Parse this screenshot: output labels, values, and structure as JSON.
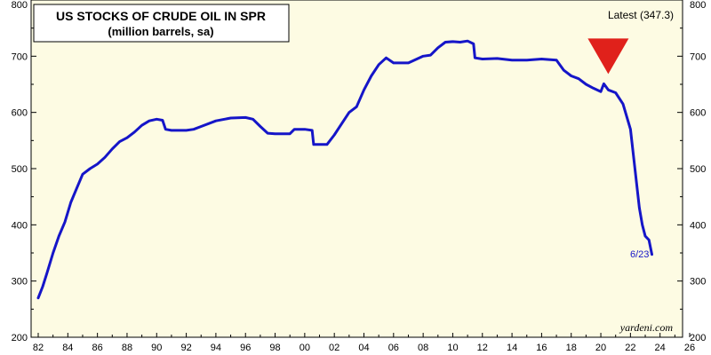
{
  "chart_data": {
    "type": "line",
    "title": "US STOCKS OF CRUDE OIL IN SPR",
    "subtitle": "(million barrels, sa)",
    "latest_label": "Latest (347.3)",
    "end_label": "6/23",
    "source": "yardeni.com",
    "ylim": [
      200,
      800
    ],
    "yticks": [
      200,
      300,
      400,
      500,
      600,
      700,
      800
    ],
    "xlim": [
      1982,
      2026
    ],
    "xtick_labels": [
      "82",
      "84",
      "86",
      "88",
      "90",
      "92",
      "94",
      "96",
      "98",
      "00",
      "02",
      "04",
      "06",
      "08",
      "10",
      "12",
      "14",
      "16",
      "18",
      "20",
      "22",
      "24",
      "26"
    ],
    "grid": false,
    "colors": {
      "plot_background": "#fdfbe3",
      "line": "#1515c8",
      "marker": "#e0211b"
    },
    "marker": {
      "shape": "down-triangle",
      "x": 2020.5,
      "y": 700
    },
    "series": [
      {
        "points": [
          [
            1982.0,
            270
          ],
          [
            1982.3,
            290
          ],
          [
            1982.6,
            315
          ],
          [
            1983.0,
            350
          ],
          [
            1983.4,
            380
          ],
          [
            1983.8,
            405
          ],
          [
            1984.2,
            440
          ],
          [
            1984.6,
            465
          ],
          [
            1985.0,
            490
          ],
          [
            1985.5,
            500
          ],
          [
            1986.0,
            508
          ],
          [
            1986.5,
            520
          ],
          [
            1987.0,
            535
          ],
          [
            1987.5,
            548
          ],
          [
            1988.0,
            555
          ],
          [
            1988.5,
            565
          ],
          [
            1989.0,
            577
          ],
          [
            1989.5,
            585
          ],
          [
            1990.0,
            588
          ],
          [
            1990.4,
            586
          ],
          [
            1990.6,
            570
          ],
          [
            1991.0,
            568
          ],
          [
            1992.0,
            568
          ],
          [
            1992.5,
            570
          ],
          [
            1993.0,
            575
          ],
          [
            1994.0,
            585
          ],
          [
            1995.0,
            590
          ],
          [
            1996.0,
            591
          ],
          [
            1996.5,
            588
          ],
          [
            1997.0,
            575
          ],
          [
            1997.5,
            563
          ],
          [
            1998.0,
            562
          ],
          [
            1999.0,
            562
          ],
          [
            1999.3,
            570
          ],
          [
            2000.0,
            570
          ],
          [
            2000.5,
            568
          ],
          [
            2000.6,
            543
          ],
          [
            2001.5,
            543
          ],
          [
            2002.0,
            560
          ],
          [
            2002.5,
            580
          ],
          [
            2003.0,
            600
          ],
          [
            2003.5,
            610
          ],
          [
            2004.0,
            640
          ],
          [
            2004.5,
            665
          ],
          [
            2005.0,
            685
          ],
          [
            2005.5,
            697
          ],
          [
            2006.0,
            688
          ],
          [
            2007.0,
            688
          ],
          [
            2008.0,
            700
          ],
          [
            2008.5,
            702
          ],
          [
            2009.0,
            715
          ],
          [
            2009.5,
            725
          ],
          [
            2010.0,
            726
          ],
          [
            2010.5,
            725
          ],
          [
            2011.0,
            727
          ],
          [
            2011.4,
            722
          ],
          [
            2011.5,
            697
          ],
          [
            2012.0,
            695
          ],
          [
            2013.0,
            696
          ],
          [
            2014.0,
            693
          ],
          [
            2015.0,
            693
          ],
          [
            2016.0,
            695
          ],
          [
            2017.0,
            693
          ],
          [
            2017.5,
            675
          ],
          [
            2018.0,
            665
          ],
          [
            2018.5,
            660
          ],
          [
            2019.0,
            650
          ],
          [
            2019.5,
            643
          ],
          [
            2020.0,
            637
          ],
          [
            2020.2,
            651
          ],
          [
            2020.5,
            640
          ],
          [
            2021.0,
            635
          ],
          [
            2021.5,
            615
          ],
          [
            2022.0,
            570
          ],
          [
            2022.3,
            500
          ],
          [
            2022.6,
            430
          ],
          [
            2022.8,
            400
          ],
          [
            2023.0,
            380
          ],
          [
            2023.25,
            373
          ],
          [
            2023.45,
            347.3
          ]
        ]
      }
    ]
  }
}
